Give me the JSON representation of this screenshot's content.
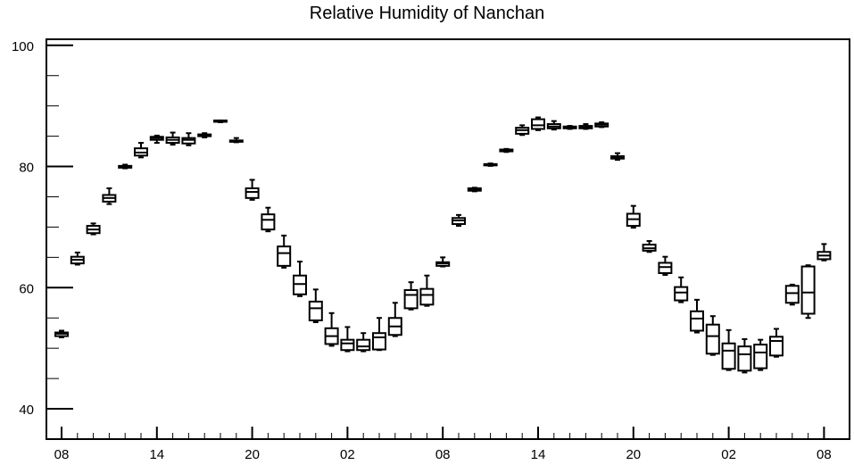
{
  "chart_data": {
    "type": "box",
    "title": "Relative Humidity of Nanchan",
    "xlabel": "",
    "ylabel": "",
    "ylim": [
      35,
      101
    ],
    "xlim": [
      0,
      49.4
    ],
    "yticks": [
      40,
      60,
      80,
      100
    ],
    "yticks_minor": [
      35,
      45,
      50,
      55,
      65,
      70,
      75,
      85,
      90,
      95
    ],
    "xtick_positions": [
      0,
      6,
      12,
      18,
      24,
      30,
      36,
      42,
      48
    ],
    "xtick_labels": [
      "08",
      "14",
      "20",
      "02",
      "08",
      "14",
      "20",
      "02",
      "08"
    ],
    "grid": false,
    "boxes": [
      {
        "x": 0,
        "low": 51.8,
        "q1": 52.0,
        "median": 52.4,
        "q3": 52.6,
        "high": 52.9
      },
      {
        "x": 1,
        "low": 63.8,
        "q1": 64.0,
        "median": 64.6,
        "q3": 65.1,
        "high": 65.8
      },
      {
        "x": 2,
        "low": 68.8,
        "q1": 69.0,
        "median": 69.6,
        "q3": 70.2,
        "high": 70.6
      },
      {
        "x": 3,
        "low": 73.8,
        "q1": 74.2,
        "median": 74.8,
        "q3": 75.3,
        "high": 76.4
      },
      {
        "x": 4,
        "low": 79.7,
        "q1": 79.8,
        "median": 80.0,
        "q3": 80.1,
        "high": 80.3
      },
      {
        "x": 5,
        "low": 81.5,
        "q1": 81.8,
        "median": 82.3,
        "q3": 83.0,
        "high": 83.9
      },
      {
        "x": 6,
        "low": 83.9,
        "q1": 84.4,
        "median": 84.7,
        "q3": 84.9,
        "high": 85.1
      },
      {
        "x": 7,
        "low": 83.6,
        "q1": 83.9,
        "median": 84.4,
        "q3": 84.8,
        "high": 85.6
      },
      {
        "x": 8,
        "low": 83.5,
        "q1": 83.8,
        "median": 84.4,
        "q3": 84.7,
        "high": 85.5
      },
      {
        "x": 9,
        "low": 84.8,
        "q1": 85.0,
        "median": 85.2,
        "q3": 85.3,
        "high": 85.5
      },
      {
        "x": 10,
        "low": 87.3,
        "q1": 87.4,
        "median": 87.5,
        "q3": 87.6,
        "high": 87.6
      },
      {
        "x": 11,
        "low": 84.0,
        "q1": 84.1,
        "median": 84.2,
        "q3": 84.3,
        "high": 84.7
      },
      {
        "x": 12,
        "low": 74.5,
        "q1": 74.8,
        "median": 75.8,
        "q3": 76.4,
        "high": 77.8
      },
      {
        "x": 13,
        "low": 69.3,
        "q1": 69.6,
        "median": 71.2,
        "q3": 72.1,
        "high": 73.2
      },
      {
        "x": 14,
        "low": 63.3,
        "q1": 63.6,
        "median": 65.7,
        "q3": 66.8,
        "high": 68.6
      },
      {
        "x": 15,
        "low": 58.6,
        "q1": 58.9,
        "median": 60.6,
        "q3": 62.0,
        "high": 64.3
      },
      {
        "x": 16,
        "low": 54.3,
        "q1": 54.6,
        "median": 56.6,
        "q3": 57.7,
        "high": 59.7
      },
      {
        "x": 17,
        "low": 50.4,
        "q1": 50.7,
        "median": 52.0,
        "q3": 53.3,
        "high": 55.8
      },
      {
        "x": 18,
        "low": 49.5,
        "q1": 49.7,
        "median": 50.8,
        "q3": 51.4,
        "high": 53.5
      },
      {
        "x": 19,
        "low": 49.5,
        "q1": 49.7,
        "median": 50.3,
        "q3": 51.4,
        "high": 52.5
      },
      {
        "x": 20,
        "low": 49.7,
        "q1": 49.8,
        "median": 51.8,
        "q3": 52.5,
        "high": 55.0
      },
      {
        "x": 21,
        "low": 52.0,
        "q1": 52.2,
        "median": 53.6,
        "q3": 55.0,
        "high": 57.5
      },
      {
        "x": 22,
        "low": 56.4,
        "q1": 56.6,
        "median": 58.8,
        "q3": 59.6,
        "high": 60.9
      },
      {
        "x": 23,
        "low": 57.0,
        "q1": 57.2,
        "median": 58.8,
        "q3": 59.8,
        "high": 62.0
      },
      {
        "x": 24,
        "low": 63.5,
        "q1": 63.6,
        "median": 64.0,
        "q3": 64.2,
        "high": 65.0
      },
      {
        "x": 25,
        "low": 70.2,
        "q1": 70.5,
        "median": 71.1,
        "q3": 71.5,
        "high": 72.0
      },
      {
        "x": 26,
        "low": 75.9,
        "q1": 76.0,
        "median": 76.2,
        "q3": 76.4,
        "high": 76.5
      },
      {
        "x": 27,
        "low": 80.1,
        "q1": 80.2,
        "median": 80.3,
        "q3": 80.4,
        "high": 80.5
      },
      {
        "x": 28,
        "low": 82.4,
        "q1": 82.5,
        "median": 82.6,
        "q3": 82.8,
        "high": 82.9
      },
      {
        "x": 29,
        "low": 85.2,
        "q1": 85.4,
        "median": 86.0,
        "q3": 86.4,
        "high": 86.8
      },
      {
        "x": 30,
        "low": 86.0,
        "q1": 86.2,
        "median": 86.8,
        "q3": 87.8,
        "high": 88.1
      },
      {
        "x": 31,
        "low": 86.1,
        "q1": 86.3,
        "median": 86.6,
        "q3": 87.0,
        "high": 87.5
      },
      {
        "x": 32,
        "low": 86.2,
        "q1": 86.3,
        "median": 86.4,
        "q3": 86.6,
        "high": 86.7
      },
      {
        "x": 33,
        "low": 86.2,
        "q1": 86.3,
        "median": 86.5,
        "q3": 86.7,
        "high": 87.0
      },
      {
        "x": 34,
        "low": 86.5,
        "q1": 86.6,
        "median": 86.9,
        "q3": 87.1,
        "high": 87.3
      },
      {
        "x": 35,
        "low": 81.1,
        "q1": 81.3,
        "median": 81.5,
        "q3": 81.7,
        "high": 82.2
      },
      {
        "x": 36,
        "low": 69.9,
        "q1": 70.2,
        "median": 71.3,
        "q3": 72.2,
        "high": 73.5
      },
      {
        "x": 37,
        "low": 65.9,
        "q1": 66.1,
        "median": 66.5,
        "q3": 67.1,
        "high": 67.7
      },
      {
        "x": 38,
        "low": 62.1,
        "q1": 62.4,
        "median": 63.4,
        "q3": 64.1,
        "high": 65.1
      },
      {
        "x": 39,
        "low": 57.6,
        "q1": 57.9,
        "median": 59.2,
        "q3": 60.1,
        "high": 61.7
      },
      {
        "x": 40,
        "low": 52.6,
        "q1": 52.9,
        "median": 54.9,
        "q3": 56.1,
        "high": 58.0
      },
      {
        "x": 41,
        "low": 48.9,
        "q1": 49.1,
        "median": 52.0,
        "q3": 53.9,
        "high": 55.3
      },
      {
        "x": 42,
        "low": 46.4,
        "q1": 46.6,
        "median": 49.6,
        "q3": 50.8,
        "high": 53.0
      },
      {
        "x": 43,
        "low": 46.0,
        "q1": 46.3,
        "median": 49.0,
        "q3": 50.3,
        "high": 51.5
      },
      {
        "x": 44,
        "low": 46.4,
        "q1": 46.7,
        "median": 49.3,
        "q3": 50.6,
        "high": 51.4
      },
      {
        "x": 45,
        "low": 48.6,
        "q1": 48.8,
        "median": 51.2,
        "q3": 51.9,
        "high": 53.2
      },
      {
        "x": 46,
        "low": 57.2,
        "q1": 57.5,
        "median": 59.1,
        "q3": 60.3,
        "high": 60.5
      },
      {
        "x": 47,
        "low": 55.0,
        "q1": 55.7,
        "median": 59.2,
        "q3": 63.5,
        "high": 63.7
      },
      {
        "x": 48,
        "low": 64.5,
        "q1": 64.7,
        "median": 65.3,
        "q3": 65.9,
        "high": 67.2
      }
    ]
  }
}
